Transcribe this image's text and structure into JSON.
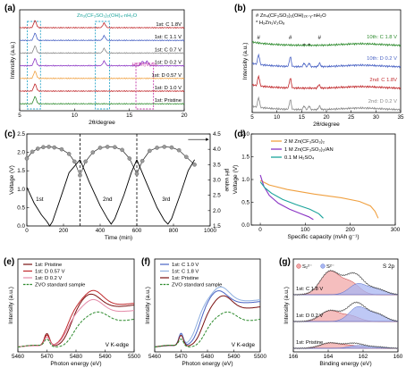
{
  "colors": {
    "red": "#c0282b",
    "darkred": "#7a1010",
    "pink": "#e48aa8",
    "blue": "#4a63c4",
    "teal": "#19a39a",
    "purple": "#8a34c4",
    "orange": "#f0a040",
    "gray": "#8a8a8a",
    "green": "#2e8b2e",
    "light_blue": "#8fb0e0",
    "dashcyan": "#2aa6c8",
    "dashmag": "#c43aa8"
  },
  "chart_data": [
    {
      "panel": "(a)",
      "type": "line",
      "xlabel": "2θ/degree",
      "ylabel": "Intensity (a.u.)",
      "xlim": [
        5,
        20
      ],
      "xticks": [
        5,
        10,
        15,
        20
      ],
      "annotations": [
        "Zn₃(CF₃SO₃)₂(OH)₄·nH₂O",
        "H₂Zn₃V₂O₈"
      ],
      "series": [
        {
          "name": "1st: C 1.8V",
          "color": "red",
          "peaks": [
            6.4,
            12.7
          ]
        },
        {
          "name": "1st: C 1.1 V",
          "color": "blue",
          "peaks": [
            6.4,
            12.7
          ]
        },
        {
          "name": "1st: C 0.7 V",
          "color": "gray",
          "peaks": [
            6.4,
            12.7
          ]
        },
        {
          "name": "1st: D 0.2 V",
          "color": "purple",
          "peaks": [
            6.4,
            12.7,
            16.2,
            16.6
          ]
        },
        {
          "name": "1st: D 0.57 V",
          "color": "orange",
          "peaks": [
            6.4
          ]
        },
        {
          "name": "1st: D 1.0 V",
          "color": "red",
          "peaks": [
            6.4
          ]
        },
        {
          "name": "1st: Pristine",
          "color": "green",
          "peaks": [
            6.4
          ]
        }
      ],
      "highlight_ranges": [
        [
          5.7,
          6.9
        ],
        [
          11.9,
          13.2
        ],
        [
          15.6,
          17.2
        ]
      ]
    },
    {
      "panel": "(b)",
      "type": "line",
      "xlabel": "2θ/degree",
      "ylabel": "Intensity (a.u.)",
      "xlim": [
        5,
        35
      ],
      "xticks": [
        5,
        10,
        15,
        20,
        25,
        30,
        35
      ],
      "legend": [
        "# Zn₄(CF₃SO₃)₂(OH)₂ₓ₋ᵧ·nH₂O",
        "* H₂Zn₃V₂O₈"
      ],
      "series": [
        {
          "name": "10th: C 1.8 V",
          "color": "green",
          "peaks": []
        },
        {
          "name": "10th: D 0.2 V",
          "color": "blue",
          "peaks": [
            6.3,
            12.7,
            15.5,
            16.5,
            18.6
          ]
        },
        {
          "name": "2nd: C 1.8V",
          "color": "red",
          "peaks": [
            6.3,
            12.7,
            18.5
          ]
        },
        {
          "name": "2nd: D 0.2 V",
          "color": "gray",
          "peaks": [
            6.3,
            12.7,
            15.5,
            16.5,
            18.6
          ]
        }
      ]
    },
    {
      "panel": "(c)",
      "type": "line",
      "xlabel": "Time (min)",
      "ylabel": "Voltage (V)",
      "ylabel_right": "pH value",
      "xlim": [
        0,
        1000
      ],
      "xticks": [
        0,
        200,
        400,
        600,
        800,
        1000
      ],
      "ylim": [
        0,
        2.5
      ],
      "yticks": [
        0.0,
        0.5,
        1.0,
        1.5,
        2.0,
        2.5
      ],
      "ylim_right": [
        1.5,
        4.5
      ],
      "yticks_right": [
        1.5,
        2.0,
        2.5,
        3.0,
        3.5,
        4.0,
        4.5
      ],
      "cycle_labels": [
        "1st",
        "2nd",
        "3rd"
      ],
      "cycle_boundaries": [
        290,
        600
      ],
      "voltage_series": [
        {
          "x": [
            0,
            40,
            80,
            110,
            125,
            140,
            180,
            230,
            290
          ],
          "y": [
            1.05,
            0.62,
            0.3,
            0.12,
            0.0,
            0.12,
            0.7,
            1.45,
            1.8
          ]
        },
        {
          "x": [
            290,
            340,
            400,
            440,
            460,
            480,
            530,
            570,
            600
          ],
          "y": [
            1.8,
            1.2,
            0.55,
            0.2,
            0.05,
            0.2,
            0.85,
            1.45,
            1.8
          ]
        },
        {
          "x": [
            600,
            650,
            710,
            750,
            770,
            790,
            840,
            880,
            915
          ],
          "y": [
            1.8,
            1.2,
            0.5,
            0.15,
            0.05,
            0.2,
            0.9,
            1.5,
            1.8
          ]
        }
      ],
      "ph_series": {
        "x": [
          0,
          30,
          60,
          90,
          120,
          150,
          190,
          230,
          260,
          290,
          320,
          360,
          400,
          440,
          480,
          520,
          560,
          600,
          630,
          670,
          710,
          750,
          790,
          830,
          870,
          915
        ],
        "y": [
          3.7,
          3.92,
          4.02,
          4.07,
          4.08,
          4.06,
          4.0,
          3.85,
          3.6,
          3.15,
          3.6,
          3.9,
          4.05,
          4.08,
          4.07,
          3.98,
          3.7,
          3.2,
          3.62,
          3.95,
          4.05,
          4.08,
          4.06,
          3.97,
          3.75,
          3.5
        ]
      }
    },
    {
      "panel": "(d)",
      "type": "line",
      "xlabel": "Specific capacity (mAh g⁻¹)",
      "ylabel": "Voltage (V)",
      "xlim": [
        0,
        300
      ],
      "xticks": [
        0,
        100,
        200,
        300
      ],
      "ylim": [
        0,
        2
      ],
      "yticks": [
        0.0,
        0.5,
        1.0,
        1.5,
        2.0
      ],
      "legend": [
        "2 M Zn(CF₃SO₃)₂",
        "1 M Zn(CF₃SO₃)₂/AN",
        "0.1 M H₂SO₄"
      ],
      "series": [
        {
          "name": "2 M Zn(CF₃SO₃)₂",
          "color": "orange",
          "x": [
            0,
            20,
            60,
            120,
            180,
            220,
            245,
            255,
            262
          ],
          "y": [
            0.98,
            0.88,
            0.78,
            0.68,
            0.6,
            0.52,
            0.42,
            0.3,
            0.15
          ]
        },
        {
          "name": "1 M Zn(CF₃SO₃)₂/AN",
          "color": "purple",
          "x": [
            0,
            8,
            20,
            40,
            65,
            90,
            108,
            118
          ],
          "y": [
            1.1,
            0.85,
            0.65,
            0.48,
            0.35,
            0.25,
            0.18,
            0.12
          ]
        },
        {
          "name": "0.1 M H₂SO₄",
          "color": "teal",
          "x": [
            0,
            10,
            25,
            50,
            80,
            110,
            130,
            140
          ],
          "y": [
            0.95,
            0.82,
            0.7,
            0.56,
            0.45,
            0.35,
            0.25,
            0.15
          ]
        }
      ]
    },
    {
      "panel": "(e)",
      "type": "line",
      "xlabel": "Photon energy (eV)",
      "ylabel": "Intensity (a.u.)",
      "xlim": [
        5460,
        5500
      ],
      "xticks": [
        5460,
        5470,
        5480,
        5490,
        5500
      ],
      "annotations": [
        "V K-edge"
      ],
      "series": [
        {
          "name": "1st: Pristine",
          "color": "darkred"
        },
        {
          "name": "1st: D 0.57 V",
          "color": "red"
        },
        {
          "name": "1st: D 0.2 V",
          "color": "pink"
        },
        {
          "name": "ZVO standard sample",
          "color": "green",
          "dashed": true
        }
      ]
    },
    {
      "panel": "(f)",
      "type": "line",
      "xlabel": "Photon energy (eV)",
      "ylabel": "Intensity (a.u.)",
      "xlim": [
        5460,
        5500
      ],
      "xticks": [
        5460,
        5470,
        5480,
        5490,
        5500
      ],
      "annotations": [
        "V K-edge"
      ],
      "series": [
        {
          "name": "1st: C 1.0 V",
          "color": "blue"
        },
        {
          "name": "1st: C 1.8 V",
          "color": "light_blue"
        },
        {
          "name": "1st: Pristine",
          "color": "darkred"
        },
        {
          "name": "ZVO standard sample",
          "color": "green",
          "dashed": true
        }
      ]
    },
    {
      "panel": "(g)",
      "type": "line",
      "xlabel": "Binding energy (eV)",
      "ylabel": "Intensity (a.u.)",
      "xlim": [
        166,
        160
      ],
      "xticks": [
        166,
        164,
        162,
        160
      ],
      "title_text": "S 2p",
      "legend": [
        "S₂²⁻",
        "S²⁻"
      ],
      "series": [
        {
          "name": "1st: C 1.8 V"
        },
        {
          "name": "1st: D 0.2 V"
        },
        {
          "name": "1st: Pristine"
        }
      ]
    }
  ]
}
